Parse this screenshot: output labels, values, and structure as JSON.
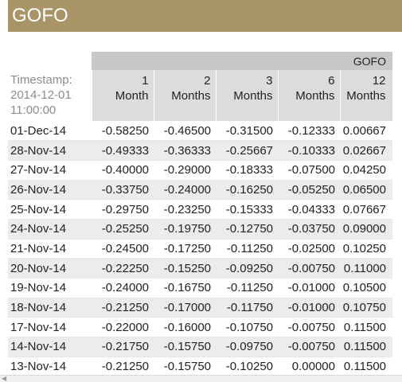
{
  "title": "GOFO",
  "table": {
    "group_label": "GOFO",
    "timestamp_label": "Timestamp:",
    "timestamp_date": "2014-12-01",
    "timestamp_time": "11:00:00",
    "columns": [
      {
        "top": "1",
        "bottom": "Month"
      },
      {
        "top": "2",
        "bottom": "Months"
      },
      {
        "top": "3",
        "bottom": "Months"
      },
      {
        "top": "6",
        "bottom": "Months"
      },
      {
        "top": "12",
        "bottom": "Months"
      }
    ],
    "rows": [
      {
        "date": "01-Dec-14",
        "values": [
          "-0.58250",
          "-0.46500",
          "-0.31500",
          "-0.12333",
          "0.00667"
        ]
      },
      {
        "date": "28-Nov-14",
        "values": [
          "-0.49333",
          "-0.36333",
          "-0.25667",
          "-0.10333",
          "0.02667"
        ]
      },
      {
        "date": "27-Nov-14",
        "values": [
          "-0.40000",
          "-0.29000",
          "-0.18333",
          "-0.07500",
          "0.04250"
        ]
      },
      {
        "date": "26-Nov-14",
        "values": [
          "-0.33750",
          "-0.24000",
          "-0.16250",
          "-0.05250",
          "0.06500"
        ]
      },
      {
        "date": "25-Nov-14",
        "values": [
          "-0.29750",
          "-0.23250",
          "-0.15333",
          "-0.04333",
          "0.07667"
        ]
      },
      {
        "date": "24-Nov-14",
        "values": [
          "-0.25250",
          "-0.19750",
          "-0.12750",
          "-0.03750",
          "0.09000"
        ]
      },
      {
        "date": "21-Nov-14",
        "values": [
          "-0.24500",
          "-0.17250",
          "-0.11250",
          "-0.02500",
          "0.10250"
        ]
      },
      {
        "date": "20-Nov-14",
        "values": [
          "-0.22250",
          "-0.15250",
          "-0.09250",
          "-0.00750",
          "0.11000"
        ]
      },
      {
        "date": "19-Nov-14",
        "values": [
          "-0.24000",
          "-0.16750",
          "-0.11250",
          "-0.01000",
          "0.10500"
        ]
      },
      {
        "date": "18-Nov-14",
        "values": [
          "-0.21250",
          "-0.17000",
          "-0.11750",
          "-0.01000",
          "0.10750"
        ]
      },
      {
        "date": "17-Nov-14",
        "values": [
          "-0.22000",
          "-0.16000",
          "-0.10750",
          "-0.00750",
          "0.11500"
        ]
      },
      {
        "date": "14-Nov-14",
        "values": [
          "-0.21750",
          "-0.15750",
          "-0.09750",
          "-0.00750",
          "0.11500"
        ]
      },
      {
        "date": "13-Nov-14",
        "values": [
          "-0.21250",
          "-0.15750",
          "-0.10250",
          "0.00000",
          "0.11500"
        ]
      }
    ]
  },
  "scrollbar": {
    "arrow_icon": "scroll-left-arrow-icon"
  }
}
